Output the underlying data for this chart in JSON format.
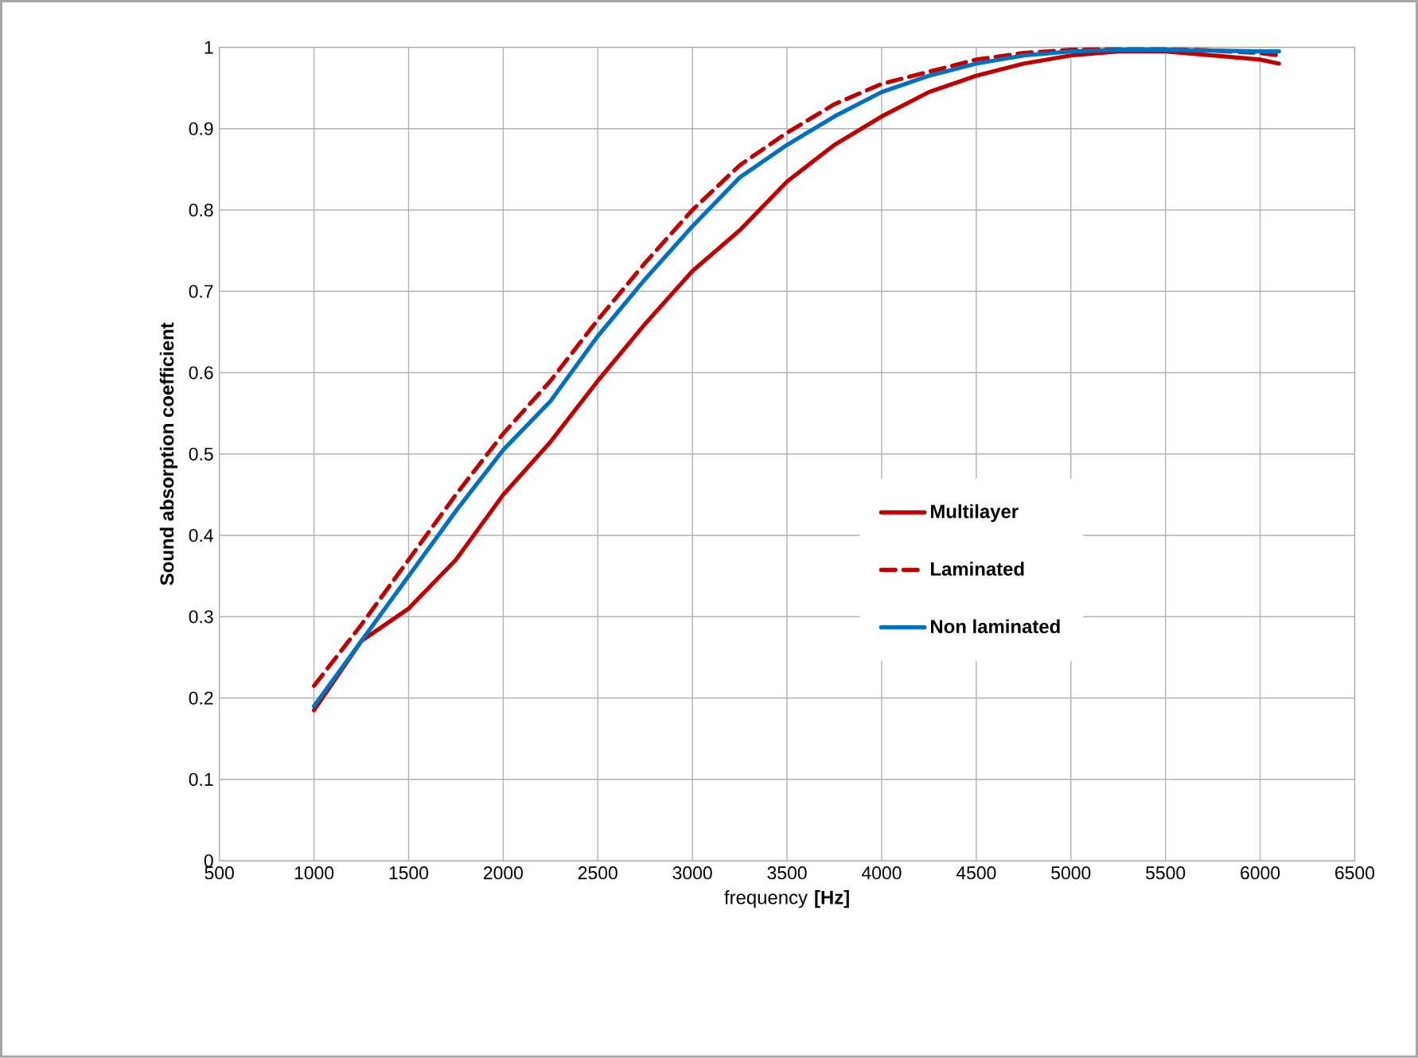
{
  "chart_data": {
    "type": "line",
    "xlabel": "frequency **[Hz]**",
    "ylabel": "Sound absorption coefficient",
    "x": [
      1000,
      1250,
      1500,
      1750,
      2000,
      2250,
      2500,
      2750,
      3000,
      3250,
      3500,
      3750,
      4000,
      4250,
      4500,
      4750,
      5000,
      5250,
      5500,
      5750,
      6000,
      6100
    ],
    "series": [
      {
        "name": "Multilayer",
        "color": "#c00000",
        "line_style": "solid",
        "values": [
          0.185,
          0.27,
          0.31,
          0.37,
          0.45,
          0.515,
          0.59,
          0.66,
          0.725,
          0.775,
          0.835,
          0.88,
          0.915,
          0.945,
          0.965,
          0.98,
          0.99,
          0.995,
          0.995,
          0.99,
          0.985,
          0.98
        ]
      },
      {
        "name": "Laminated",
        "color": "#c00000",
        "line_style": "dashed",
        "values": [
          0.215,
          0.29,
          0.37,
          0.45,
          0.525,
          0.59,
          0.665,
          0.735,
          0.8,
          0.855,
          0.895,
          0.93,
          0.955,
          0.97,
          0.985,
          0.993,
          0.997,
          0.998,
          0.998,
          0.996,
          0.993,
          0.99
        ]
      },
      {
        "name": "Non laminated",
        "color": "#0070c0",
        "line_style": "solid",
        "values": [
          0.19,
          0.27,
          0.35,
          0.43,
          0.505,
          0.565,
          0.645,
          0.715,
          0.78,
          0.84,
          0.88,
          0.915,
          0.945,
          0.965,
          0.98,
          0.99,
          0.995,
          0.997,
          0.997,
          0.996,
          0.995,
          0.995
        ]
      }
    ],
    "xlim": [
      500,
      6500
    ],
    "xticks": [
      500,
      1000,
      1500,
      2000,
      2500,
      3000,
      3500,
      4000,
      4500,
      5000,
      5500,
      6000,
      6500
    ],
    "ylim": [
      0,
      1
    ],
    "yticks": [
      0,
      0.1,
      0.2,
      0.3,
      0.4,
      0.5,
      0.6,
      0.7,
      0.8,
      0.9,
      1
    ],
    "grid": true,
    "legend": "right",
    "marker": "none"
  }
}
